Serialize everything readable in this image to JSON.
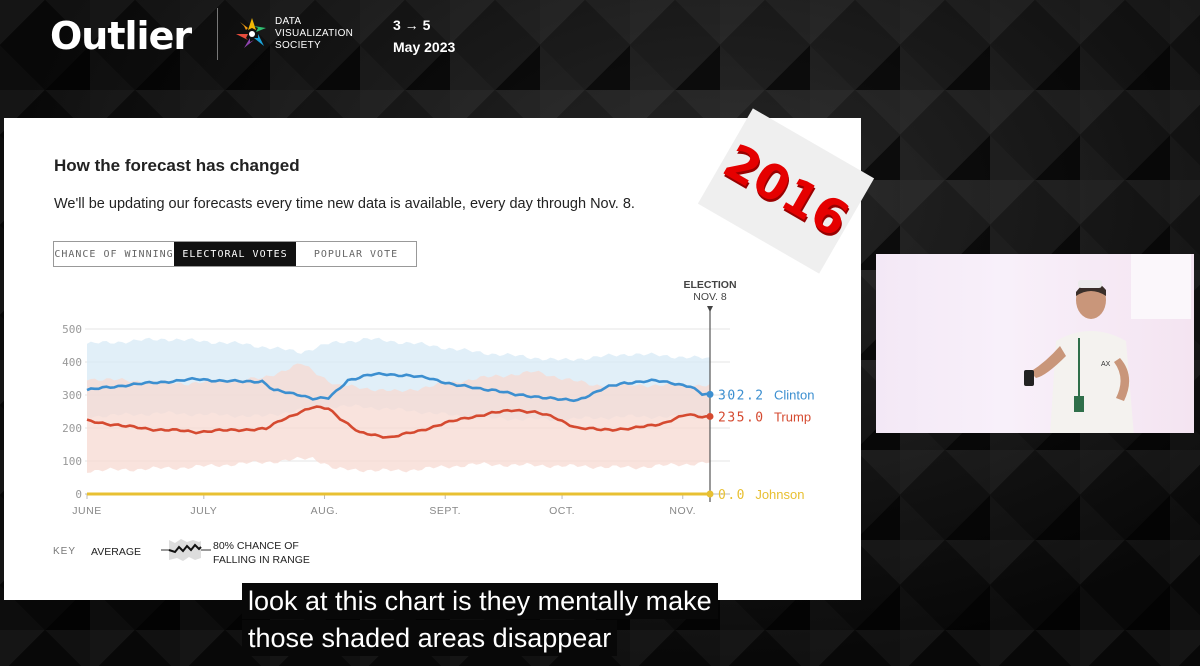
{
  "header": {
    "brand": "Outlier",
    "org_lines": [
      "DATA",
      "VISUALIZATION",
      "SOCIETY"
    ],
    "dates_line1": "3 → 5",
    "dates_line2": "May 2023"
  },
  "slide": {
    "title": "How the forecast has changed",
    "subtitle": "We'll be updating our forecasts every time new data is available, every day through Nov. 8.",
    "tabs": [
      "CHANCE OF WINNING",
      "ELECTORAL VOTES",
      "POPULAR VOTE"
    ],
    "active_tab": "ELECTORAL VOTES",
    "stamp": "2016",
    "election_marker": [
      "ELECTION",
      "NOV. 8"
    ],
    "key": {
      "label": "KEY",
      "average": "AVERAGE",
      "range": "80% CHANCE OF FALLING IN RANGE"
    }
  },
  "chart_data": {
    "type": "line",
    "title": "How the forecast has changed",
    "ylim": [
      0,
      538
    ],
    "yticks": [
      0,
      100,
      200,
      300,
      400,
      500
    ],
    "xlabels": [
      "JUNE",
      "JULY",
      "AUG.",
      "SEPT.",
      "OCT.",
      "NOV."
    ],
    "x_tick_index": [
      0,
      30,
      61,
      92,
      122,
      153
    ],
    "end_index": 160,
    "grid": true,
    "series": [
      {
        "name": "Clinton",
        "color": "#3c8fd0",
        "band_color": "#d7e9f6",
        "final_label": "302.2",
        "anchors": [
          [
            0,
            315
          ],
          [
            10,
            330
          ],
          [
            20,
            340
          ],
          [
            28,
            348
          ],
          [
            32,
            345
          ],
          [
            40,
            340
          ],
          [
            45,
            342
          ],
          [
            48,
            315
          ],
          [
            52,
            305
          ],
          [
            55,
            300
          ],
          [
            58,
            290
          ],
          [
            62,
            290
          ],
          [
            64,
            310
          ],
          [
            67,
            345
          ],
          [
            72,
            360
          ],
          [
            76,
            363
          ],
          [
            82,
            360
          ],
          [
            88,
            350
          ],
          [
            95,
            330
          ],
          [
            100,
            320
          ],
          [
            105,
            315
          ],
          [
            110,
            300
          ],
          [
            116,
            295
          ],
          [
            122,
            285
          ],
          [
            126,
            285
          ],
          [
            130,
            305
          ],
          [
            134,
            325
          ],
          [
            138,
            337
          ],
          [
            142,
            340
          ],
          [
            146,
            343
          ],
          [
            150,
            338
          ],
          [
            155,
            325
          ],
          [
            158,
            302
          ],
          [
            160,
            302
          ]
        ],
        "lower": [
          [
            0,
            235
          ],
          [
            20,
            245
          ],
          [
            45,
            235
          ],
          [
            60,
            265
          ],
          [
            70,
            265
          ],
          [
            85,
            250
          ],
          [
            100,
            230
          ],
          [
            120,
            225
          ],
          [
            140,
            235
          ],
          [
            160,
            232
          ]
        ],
        "upper": [
          [
            0,
            455
          ],
          [
            20,
            470
          ],
          [
            40,
            455
          ],
          [
            55,
            430
          ],
          [
            62,
            455
          ],
          [
            72,
            470
          ],
          [
            85,
            455
          ],
          [
            100,
            430
          ],
          [
            122,
            405
          ],
          [
            140,
            425
          ],
          [
            160,
            410
          ]
        ]
      },
      {
        "name": "Trump",
        "color": "#d54a30",
        "band_color": "#f7d9d2",
        "final_label": "235.0",
        "anchors": [
          [
            0,
            222
          ],
          [
            10,
            205
          ],
          [
            18,
            195
          ],
          [
            24,
            192
          ],
          [
            28,
            188
          ],
          [
            34,
            192
          ],
          [
            40,
            195
          ],
          [
            46,
            197
          ],
          [
            50,
            225
          ],
          [
            54,
            245
          ],
          [
            58,
            262
          ],
          [
            62,
            260
          ],
          [
            65,
            230
          ],
          [
            70,
            185
          ],
          [
            78,
            172
          ],
          [
            85,
            190
          ],
          [
            92,
            215
          ],
          [
            98,
            232
          ],
          [
            104,
            245
          ],
          [
            110,
            255
          ],
          [
            115,
            248
          ],
          [
            120,
            232
          ],
          [
            126,
            200
          ],
          [
            132,
            195
          ],
          [
            140,
            198
          ],
          [
            148,
            215
          ],
          [
            154,
            240
          ],
          [
            158,
            235
          ],
          [
            160,
            235
          ]
        ],
        "lower": [
          [
            0,
            70
          ],
          [
            25,
            80
          ],
          [
            50,
            100
          ],
          [
            58,
            110
          ],
          [
            64,
            75
          ],
          [
            80,
            70
          ],
          [
            100,
            90
          ],
          [
            122,
            85
          ],
          [
            140,
            80
          ],
          [
            160,
            95
          ]
        ],
        "upper": [
          [
            0,
            350
          ],
          [
            25,
            335
          ],
          [
            45,
            350
          ],
          [
            55,
            395
          ],
          [
            64,
            330
          ],
          [
            80,
            310
          ],
          [
            100,
            350
          ],
          [
            115,
            370
          ],
          [
            130,
            330
          ],
          [
            160,
            330
          ]
        ]
      },
      {
        "name": "Johnson",
        "color": "#e8c032",
        "final_label": "0.0",
        "anchors": [
          [
            0,
            0
          ],
          [
            160,
            0
          ]
        ]
      }
    ]
  },
  "captions": [
    "look at this chart is they mentally make",
    "those shaded areas disappear"
  ]
}
